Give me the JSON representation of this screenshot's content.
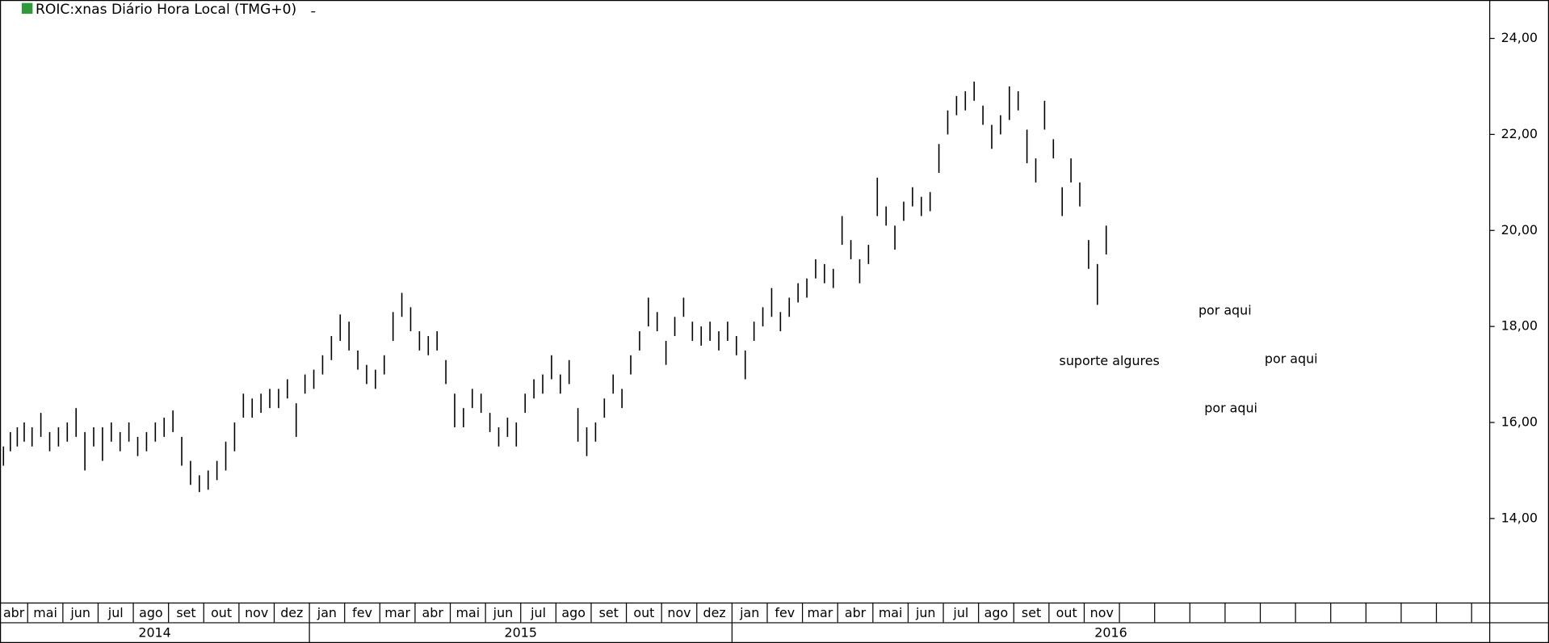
{
  "chart_data": {
    "type": "ohlc",
    "title": "ROIC:xnas Diário Hora Local (TMG+0)",
    "annotations": [
      "suporte algures",
      "por aqui",
      "por aqui",
      "por aqui"
    ],
    "ylim": [
      12.25,
      24.8
    ],
    "yticks": [
      {
        "value": 14,
        "label": "14,00"
      },
      {
        "value": 16,
        "label": "16,00"
      },
      {
        "value": 18,
        "label": "18,00"
      },
      {
        "value": 20,
        "label": "20,00"
      },
      {
        "value": 22,
        "label": "22,00"
      },
      {
        "value": 24,
        "label": "24,00"
      }
    ],
    "color": "#000000",
    "years": [
      {
        "year": "2014",
        "months": [
          {
            "label": "abr",
            "low": [
              15.1,
              15.4,
              15.5,
              15.6
            ],
            "high": [
              15.5,
              15.8,
              15.9,
              16.0
            ]
          },
          {
            "label": "mai",
            "low": [
              15.5,
              15.7,
              15.4,
              15.5
            ],
            "high": [
              15.9,
              16.2,
              15.8,
              15.9
            ]
          },
          {
            "label": "jun",
            "low": [
              15.6,
              15.7,
              15.0,
              15.5
            ],
            "high": [
              16.0,
              16.3,
              15.8,
              15.9
            ]
          },
          {
            "label": "jul",
            "low": [
              15.2,
              15.6,
              15.4,
              15.6
            ],
            "high": [
              15.9,
              16.0,
              15.8,
              16.0
            ]
          },
          {
            "label": "ago",
            "low": [
              15.3,
              15.4,
              15.6,
              15.7
            ],
            "high": [
              15.7,
              15.8,
              16.0,
              16.1
            ]
          },
          {
            "label": "set",
            "low": [
              15.8,
              15.1,
              14.7,
              14.55
            ],
            "high": [
              16.25,
              15.7,
              15.2,
              14.9
            ]
          },
          {
            "label": "out",
            "low": [
              14.6,
              14.8,
              15.0,
              15.4
            ],
            "high": [
              15.0,
              15.2,
              15.6,
              16.0
            ]
          },
          {
            "label": "nov",
            "low": [
              16.1,
              16.1,
              16.2,
              16.3
            ],
            "high": [
              16.6,
              16.5,
              16.6,
              16.7
            ]
          },
          {
            "label": "dez",
            "low": [
              16.3,
              16.5,
              15.7,
              16.6
            ],
            "high": [
              16.7,
              16.9,
              16.4,
              17.0
            ]
          }
        ]
      },
      {
        "year": "2015",
        "months": [
          {
            "label": "jan",
            "low": [
              16.7,
              17.0,
              17.3,
              17.7
            ],
            "high": [
              17.1,
              17.4,
              17.8,
              18.25
            ]
          },
          {
            "label": "fev",
            "low": [
              17.5,
              17.1,
              16.8,
              16.7
            ],
            "high": [
              18.1,
              17.5,
              17.2,
              17.1
            ]
          },
          {
            "label": "mar",
            "low": [
              17.0,
              17.7,
              18.2,
              17.9
            ],
            "high": [
              17.4,
              18.3,
              18.7,
              18.4
            ]
          },
          {
            "label": "abr",
            "low": [
              17.5,
              17.4,
              17.5,
              16.8
            ],
            "high": [
              17.9,
              17.8,
              17.9,
              17.3
            ]
          },
          {
            "label": "mai",
            "low": [
              15.9,
              15.9,
              16.3,
              16.2
            ],
            "high": [
              16.6,
              16.3,
              16.7,
              16.6
            ]
          },
          {
            "label": "jun",
            "low": [
              15.8,
              15.5,
              15.7,
              15.5
            ],
            "high": [
              16.2,
              15.9,
              16.1,
              16.0
            ]
          },
          {
            "label": "jul",
            "low": [
              16.2,
              16.5,
              16.6,
              16.9
            ],
            "high": [
              16.6,
              16.9,
              17.0,
              17.4
            ]
          },
          {
            "label": "ago",
            "low": [
              16.6,
              16.8,
              15.6,
              15.3
            ],
            "high": [
              17.0,
              17.3,
              16.3,
              15.9
            ]
          },
          {
            "label": "set",
            "low": [
              15.6,
              16.1,
              16.6,
              16.3
            ],
            "high": [
              16.0,
              16.5,
              17.0,
              16.7
            ]
          },
          {
            "label": "out",
            "low": [
              17.0,
              17.5,
              18.0,
              17.9
            ],
            "high": [
              17.4,
              17.9,
              18.6,
              18.3
            ]
          },
          {
            "label": "nov",
            "low": [
              17.2,
              17.8,
              18.2,
              17.7
            ],
            "high": [
              17.7,
              18.2,
              18.6,
              18.1
            ]
          },
          {
            "label": "dez",
            "low": [
              17.6,
              17.7,
              17.5,
              17.7
            ],
            "high": [
              18.0,
              18.1,
              17.9,
              18.1
            ]
          }
        ]
      },
      {
        "year": "2016",
        "months": [
          {
            "label": "jan",
            "low": [
              17.4,
              16.9,
              17.7,
              18.0
            ],
            "high": [
              17.8,
              17.5,
              18.1,
              18.4
            ]
          },
          {
            "label": "fev",
            "low": [
              18.2,
              17.9,
              18.2,
              18.5
            ],
            "high": [
              18.8,
              18.3,
              18.6,
              18.9
            ]
          },
          {
            "label": "mar",
            "low": [
              18.6,
              19.0,
              18.9,
              18.8
            ],
            "high": [
              19.0,
              19.4,
              19.3,
              19.2
            ]
          },
          {
            "label": "abr",
            "low": [
              19.7,
              19.4,
              18.9,
              19.3
            ],
            "high": [
              20.3,
              19.8,
              19.4,
              19.7
            ]
          },
          {
            "label": "mai",
            "low": [
              20.3,
              20.1,
              19.6,
              20.2
            ],
            "high": [
              21.1,
              20.5,
              20.1,
              20.6
            ]
          },
          {
            "label": "jun",
            "low": [
              20.5,
              20.3,
              20.4,
              21.2
            ],
            "high": [
              20.9,
              20.7,
              20.8,
              21.8
            ]
          },
          {
            "label": "jul",
            "low": [
              22.0,
              22.4,
              22.5,
              22.7
            ],
            "high": [
              22.5,
              22.8,
              22.9,
              23.1
            ]
          },
          {
            "label": "ago",
            "low": [
              22.2,
              21.7,
              22.0,
              22.3
            ],
            "high": [
              22.6,
              22.2,
              22.4,
              23.0
            ]
          },
          {
            "label": "set",
            "low": [
              22.5,
              21.4,
              21.0,
              22.1
            ],
            "high": [
              22.9,
              22.1,
              21.5,
              22.7
            ]
          },
          {
            "label": "out",
            "low": [
              21.5,
              20.3,
              21.0,
              20.5
            ],
            "high": [
              21.9,
              20.9,
              21.5,
              21.0
            ]
          },
          {
            "label": "nov",
            "low": [
              19.2,
              18.45,
              19.5
            ],
            "high": [
              19.8,
              19.3,
              20.1
            ]
          }
        ]
      }
    ]
  }
}
